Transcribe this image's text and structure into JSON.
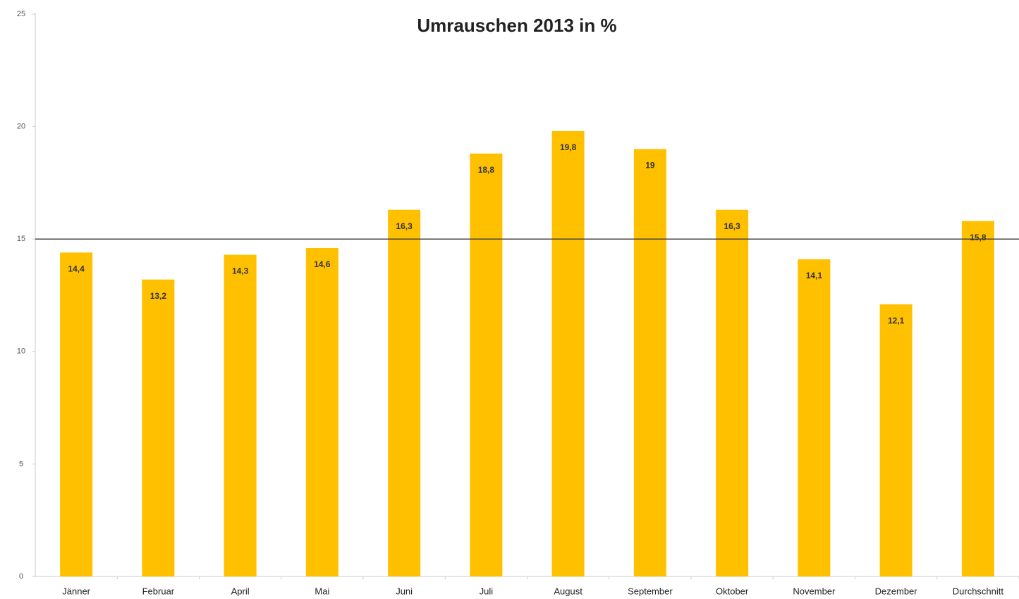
{
  "chart_data": {
    "type": "bar",
    "title": "Umrauschen 2013 in %",
    "categories": [
      "Jänner",
      "Februar",
      "April",
      "Mai",
      "Juni",
      "Juli",
      "August",
      "September",
      "Oktober",
      "November",
      "Dezember",
      "Durchschnitt"
    ],
    "values": [
      14.4,
      13.2,
      14.3,
      14.6,
      16.3,
      18.8,
      19.8,
      19,
      16.3,
      14.1,
      12.1,
      15.8
    ],
    "value_labels": [
      "14,4",
      "13,2",
      "14,3",
      "14,6",
      "16,3",
      "18,8",
      "19,8",
      "19",
      "16,3",
      "14,1",
      "12,1",
      "15,8"
    ],
    "color": "#ffc000",
    "ylim": [
      0,
      25
    ],
    "yticks": [
      0,
      5,
      10,
      15,
      20,
      25
    ],
    "reference_line": 15
  }
}
